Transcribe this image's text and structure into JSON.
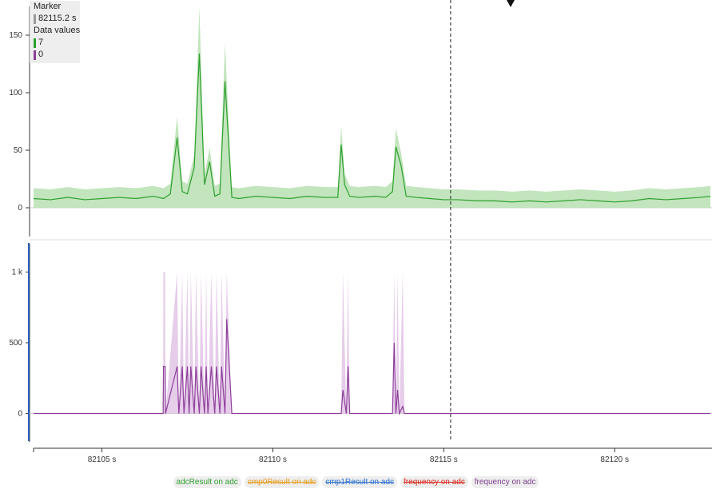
{
  "tooltip": {
    "marker_label": "Marker",
    "marker_value": "82115.2 s",
    "data_values_label": "Data values",
    "value_top": "7",
    "value_bottom": "0"
  },
  "legend": [
    {
      "label": "adcResult on adc",
      "color": "#2e9e2e",
      "hidden": false
    },
    {
      "label": "cmp0Result on adc",
      "color": "#e69a1a",
      "hidden": true
    },
    {
      "label": "cmp1Result on adc",
      "color": "#2a6fd1",
      "hidden": true
    },
    {
      "label": "frequency on adc",
      "color": "#d92b1f",
      "hidden": true
    },
    {
      "label": "frequency on adc",
      "color": "#7d3d8e",
      "hidden": false
    }
  ],
  "colors": {
    "series_top": "#2ca02c",
    "series_top_band": "#b7e0b2",
    "series_bottom": "#8e3f9b",
    "series_bottom_band": "#e2c4e6",
    "left_accent": "#2a5fb8"
  },
  "chart_data": [
    {
      "type": "line",
      "series": [
        {
          "name": "adcResult on adc",
          "x": [
            82103,
            82103.5,
            82104,
            82104.5,
            82105,
            82105.5,
            82106,
            82106.5,
            82106.8,
            82107.0,
            82107.2,
            82107.35,
            82107.5,
            82107.7,
            82107.85,
            82108.0,
            82108.15,
            82108.3,
            82108.45,
            82108.6,
            82108.8,
            82109,
            82109.5,
            82110,
            82110.5,
            82111,
            82111.5,
            82111.9,
            82112.0,
            82112.1,
            82112.25,
            82112.5,
            82113,
            82113.3,
            82113.5,
            82113.6,
            82113.75,
            82113.9,
            82114.2,
            82114.6,
            82115,
            82115.4,
            82116,
            82116.5,
            82117,
            82117.5,
            82118,
            82118.5,
            82119,
            82119.5,
            82120,
            82120.5,
            82121,
            82121.5,
            82122,
            82122.5,
            82122.8
          ],
          "y": [
            8,
            7,
            9,
            7,
            8,
            9,
            8,
            10,
            8,
            12,
            61,
            14,
            12,
            35,
            134,
            20,
            40,
            10,
            12,
            110,
            9,
            8,
            10,
            9,
            8,
            10,
            9,
            9,
            55,
            20,
            10,
            9,
            10,
            9,
            14,
            53,
            37,
            10,
            9,
            8,
            7,
            7,
            6,
            6,
            5,
            6,
            5,
            6,
            7,
            6,
            5,
            6,
            8,
            7,
            8,
            9,
            10
          ]
        }
      ],
      "yticks": [
        "0",
        "50",
        "100",
        "150"
      ],
      "ylim": [
        -25,
        175
      ],
      "marker_x": 82115.2
    },
    {
      "type": "line",
      "series": [
        {
          "name": "frequency on adc",
          "x": [
            82103,
            82106.79,
            82106.8,
            82106.85,
            82106.86,
            82107.2,
            82107.25,
            82107.35,
            82107.4,
            82107.5,
            82107.55,
            82107.6,
            82107.7,
            82107.75,
            82107.85,
            82107.9,
            82108.0,
            82108.05,
            82108.1,
            82108.2,
            82108.3,
            82108.35,
            82108.45,
            82108.5,
            82108.6,
            82108.65,
            82108.8,
            82108.81,
            82112.0,
            82112.05,
            82112.15,
            82112.2,
            82112.25,
            82112.3,
            82113.5,
            82113.55,
            82113.6,
            82113.65,
            82113.7,
            82113.8,
            82113.85,
            82122.8
          ],
          "y": [
            0,
            0,
            333,
            333,
            0,
            333,
            0,
            333,
            0,
            333,
            0,
            333,
            0,
            333,
            0,
            333,
            0,
            333,
            0,
            333,
            0,
            333,
            0,
            333,
            0,
            667,
            0,
            0,
            0,
            167,
            0,
            333,
            0,
            0,
            0,
            500,
            0,
            167,
            0,
            50,
            0,
            0
          ]
        }
      ],
      "yticks": [
        "0",
        "500",
        "1 k"
      ],
      "ylim": [
        -200,
        1200
      ],
      "marker_x": 82115.2
    }
  ],
  "x_axis": {
    "ticks": [
      {
        "value": 82105,
        "label": "82105 s"
      },
      {
        "value": 82110,
        "label": "82110 s"
      },
      {
        "value": 82115,
        "label": "82115 s"
      },
      {
        "value": 82120,
        "label": "82120 s"
      }
    ],
    "range": [
      82103,
      82122.8
    ]
  }
}
